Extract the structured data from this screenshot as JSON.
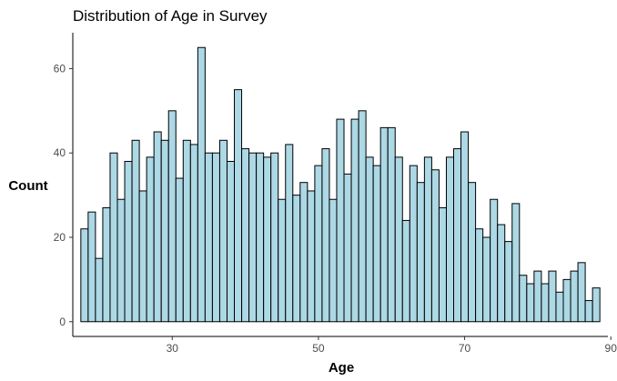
{
  "chart_data": {
    "type": "bar",
    "title": "Distribution of Age in Survey",
    "xlabel": "Age",
    "ylabel": "Count",
    "xlim": [
      16.4,
      89.6
    ],
    "ylim": [
      -3.5,
      68.5
    ],
    "x_ticks": [
      30,
      50,
      70,
      90
    ],
    "y_ticks": [
      0,
      20,
      40,
      60
    ],
    "bin_start": 18,
    "bin_width": 1,
    "values": [
      22,
      26,
      15,
      27,
      40,
      29,
      38,
      43,
      31,
      39,
      45,
      43,
      50,
      34,
      43,
      42,
      65,
      40,
      40,
      43,
      38,
      55,
      41,
      40,
      40,
      39,
      40,
      29,
      42,
      30,
      33,
      31,
      37,
      41,
      29,
      48,
      35,
      48,
      50,
      39,
      37,
      46,
      46,
      39,
      24,
      37,
      33,
      39,
      36,
      27,
      39,
      41,
      45,
      33,
      22,
      20,
      29,
      23,
      19,
      28,
      11,
      9,
      12,
      9,
      12,
      7,
      10,
      12,
      14,
      5,
      8
    ],
    "bar_color": "#add8e6",
    "grid": false,
    "legend": "none"
  }
}
